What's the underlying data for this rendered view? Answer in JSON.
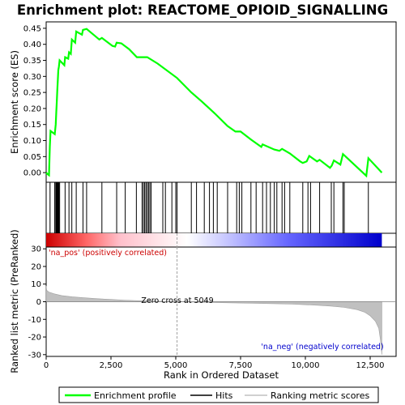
{
  "chart_data": {
    "type": "line",
    "title": "Enrichment plot: REACTOME_OPIOID_SIGNALLING",
    "es_panel": {
      "ylabel": "Enrichment score (ES)",
      "ylim": [
        -0.03,
        0.47
      ],
      "yticks": [
        0.0,
        0.05,
        0.1,
        0.15,
        0.2,
        0.25,
        0.3,
        0.35,
        0.4,
        0.45
      ],
      "ytick_labels": [
        "0.00",
        "0.05",
        "0.10",
        "0.15",
        "0.20",
        "0.25",
        "0.30",
        "0.35",
        "0.40",
        "0.45"
      ],
      "line_color": "#00ff00",
      "points": [
        [
          0,
          0
        ],
        [
          60,
          -0.005
        ],
        [
          110,
          -0.008
        ],
        [
          140,
          0.08
        ],
        [
          170,
          0.13
        ],
        [
          330,
          0.12
        ],
        [
          370,
          0.15
        ],
        [
          390,
          0.19
        ],
        [
          410,
          0.22
        ],
        [
          430,
          0.26
        ],
        [
          450,
          0.29
        ],
        [
          470,
          0.32
        ],
        [
          490,
          0.33
        ],
        [
          520,
          0.35
        ],
        [
          700,
          0.335
        ],
        [
          730,
          0.36
        ],
        [
          850,
          0.355
        ],
        [
          880,
          0.375
        ],
        [
          950,
          0.37
        ],
        [
          990,
          0.415
        ],
        [
          1120,
          0.405
        ],
        [
          1160,
          0.44
        ],
        [
          1380,
          0.43
        ],
        [
          1420,
          0.445
        ],
        [
          1560,
          0.448
        ],
        [
          2050,
          0.415
        ],
        [
          2150,
          0.42
        ],
        [
          2560,
          0.395
        ],
        [
          2660,
          0.393
        ],
        [
          2720,
          0.405
        ],
        [
          2900,
          0.403
        ],
        [
          3200,
          0.385
        ],
        [
          3500,
          0.36
        ],
        [
          3900,
          0.36
        ],
        [
          4300,
          0.34
        ],
        [
          5049,
          0.295
        ],
        [
          5600,
          0.25
        ],
        [
          6000,
          0.222
        ],
        [
          6500,
          0.185
        ],
        [
          7000,
          0.145
        ],
        [
          7300,
          0.128
        ],
        [
          7500,
          0.128
        ],
        [
          7900,
          0.103
        ],
        [
          8300,
          0.08
        ],
        [
          8350,
          0.088
        ],
        [
          8800,
          0.072
        ],
        [
          9000,
          0.068
        ],
        [
          9100,
          0.074
        ],
        [
          9400,
          0.06
        ],
        [
          9800,
          0.035
        ],
        [
          9900,
          0.03
        ],
        [
          10050,
          0.035
        ],
        [
          10150,
          0.052
        ],
        [
          10450,
          0.035
        ],
        [
          10550,
          0.04
        ],
        [
          10950,
          0.015
        ],
        [
          11020,
          0.022
        ],
        [
          11100,
          0.038
        ],
        [
          11350,
          0.025
        ],
        [
          11450,
          0.058
        ],
        [
          12350,
          -0.01
        ],
        [
          12430,
          0.045
        ],
        [
          12950,
          0.0
        ]
      ]
    },
    "hits": [
      150,
      330,
      370,
      390,
      410,
      430,
      450,
      470,
      490,
      520,
      730,
      880,
      990,
      1160,
      1420,
      1560,
      2150,
      2720,
      3050,
      3480,
      3700,
      3750,
      3800,
      3850,
      3900,
      3950,
      4000,
      4050,
      4500,
      4600,
      4850,
      5000,
      5050,
      5600,
      5800,
      6100,
      6300,
      6450,
      6600,
      7000,
      7350,
      7450,
      7550,
      7900,
      8100,
      8350,
      8500,
      8650,
      8800,
      8900,
      9100,
      9200,
      9400,
      9900,
      10100,
      10200,
      10550,
      11000,
      11100,
      11450,
      11500,
      12430
    ],
    "heatmap_band": {
      "stops": [
        "#cc0000",
        "#ff6666",
        "#ffc0cb",
        "#ffffff",
        "#c0c0ff",
        "#6666ff",
        "#0000cc"
      ]
    },
    "ranked_panel": {
      "ylabel": "Ranked list metric (PreRanked)",
      "ylim": [
        -31,
        31
      ],
      "yticks": [
        -30,
        -20,
        -10,
        0,
        10,
        20,
        30
      ],
      "ytick_labels": [
        "-30",
        "-20",
        "-10",
        "0",
        "10",
        "20",
        "30"
      ],
      "profile": [
        [
          0,
          9.0
        ],
        [
          20,
          6.5
        ],
        [
          100,
          5.5
        ],
        [
          300,
          4.5
        ],
        [
          600,
          3.5
        ],
        [
          1000,
          2.8
        ],
        [
          1500,
          2.2
        ],
        [
          2000,
          1.7
        ],
        [
          2500,
          1.3
        ],
        [
          3000,
          0.9
        ],
        [
          3500,
          0.6
        ],
        [
          4000,
          0.4
        ],
        [
          4500,
          0.2
        ],
        [
          5049,
          0.0
        ],
        [
          6000,
          -0.3
        ],
        [
          7000,
          -0.6
        ],
        [
          8000,
          -0.9
        ],
        [
          9000,
          -1.2
        ],
        [
          9500,
          -1.4
        ],
        [
          10000,
          -1.7
        ],
        [
          10500,
          -2.0
        ],
        [
          11000,
          -2.5
        ],
        [
          11500,
          -3.2
        ],
        [
          12000,
          -4.5
        ],
        [
          12300,
          -6.0
        ],
        [
          12500,
          -8.0
        ],
        [
          12700,
          -11.0
        ],
        [
          12830,
          -15.0
        ],
        [
          12900,
          -22.0
        ],
        [
          12950,
          -30.0
        ]
      ],
      "zero_cross_label": "Zero cross at 5049",
      "zero_cross": 5049,
      "pos_label": "'na_pos' (positively correlated)",
      "neg_label": "'na_neg' (negatively correlated)",
      "pos_color": "#cc0000",
      "neg_color": "#0000cc"
    },
    "xlabel": "Rank in Ordered Dataset",
    "xlim": [
      0,
      13500
    ],
    "xticks": [
      0,
      2500,
      5000,
      7500,
      10000,
      12500
    ],
    "xtick_labels": [
      "0",
      "2,500",
      "5,000",
      "7,500",
      "10,000",
      "12,500"
    ],
    "n_genes": 12950,
    "legend": {
      "placement": "bottom",
      "entries": [
        {
          "label": "Enrichment profile",
          "color": "#00ff00"
        },
        {
          "label": "Hits",
          "color": "#000000"
        },
        {
          "label": "Ranking metric scores",
          "color": "#c0c0c0"
        }
      ]
    }
  }
}
